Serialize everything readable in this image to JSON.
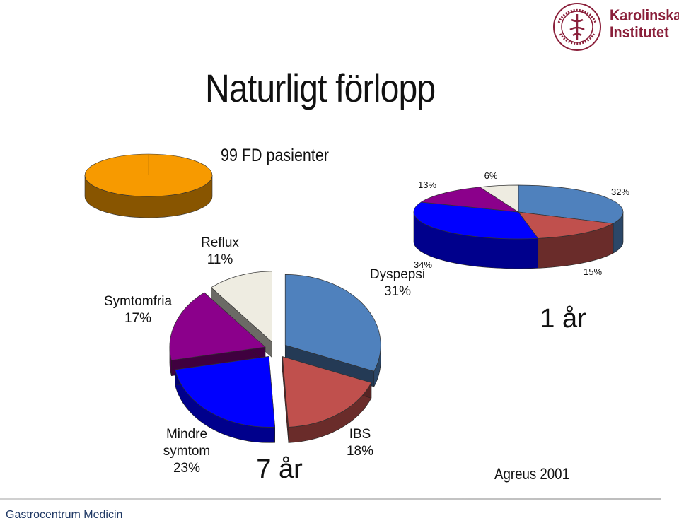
{
  "slide": {
    "title": "Naturligt förlopp",
    "logo_text_line1": "Karolinska",
    "logo_text_line2": "Institutet",
    "seal_text": "KAROLINSKA INSTITUTET ANNO 1810",
    "footer": "Gastrocentrum Medicin",
    "source": "Agreus 2001"
  },
  "chart_data": [
    {
      "type": "pie",
      "title": "99 FD pasienter",
      "categories": [
        ""
      ],
      "values": [
        100
      ],
      "colors": [
        "#f79a00"
      ]
    },
    {
      "type": "pie",
      "title": "1 år",
      "categories": [
        "",
        "",
        "",
        "",
        ""
      ],
      "values": [
        32,
        15,
        34,
        13,
        6
      ],
      "value_labels": [
        "32%",
        "15%",
        "34%",
        "13%",
        "6%"
      ],
      "colors": [
        "#4f81bd",
        "#c0504d",
        "#0000ff",
        "#8b008b",
        "#eeece1"
      ]
    },
    {
      "type": "pie",
      "title": "7 år",
      "categories": [
        "Dyspepsi",
        "IBS",
        "Mindre symtom",
        "Symtomfria",
        "Reflux"
      ],
      "values": [
        31,
        18,
        23,
        17,
        11
      ],
      "value_labels": [
        "31%",
        "18%",
        "23%",
        "17%",
        "11%"
      ],
      "colors": [
        "#4f81bd",
        "#c0504d",
        "#0000ff",
        "#8b008b",
        "#eeece1"
      ]
    }
  ]
}
